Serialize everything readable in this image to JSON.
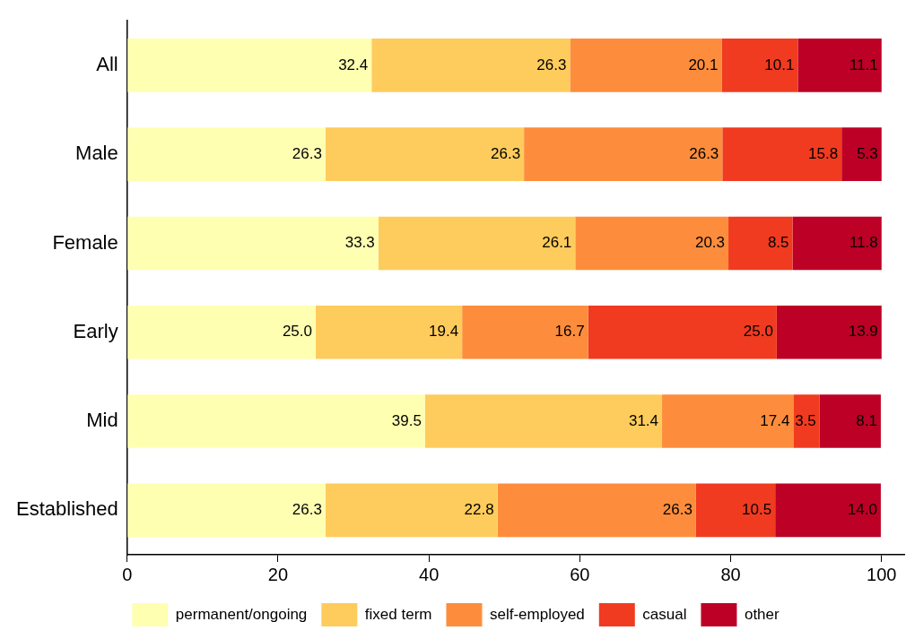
{
  "chart_data": {
    "type": "bar",
    "orientation": "horizontal",
    "stacked": true,
    "categories": [
      "All",
      "Male",
      "Female",
      "Early",
      "Mid",
      "Established"
    ],
    "series": [
      {
        "name": "permanent/ongoing",
        "color": "#ffffb2",
        "values": [
          32.4,
          26.3,
          33.3,
          25.0,
          39.5,
          26.3
        ],
        "value_labels": [
          "32.4",
          "26.3",
          "33.3",
          "25.0",
          "39.5",
          "26.3"
        ]
      },
      {
        "name": "fixed term",
        "color": "#fecc5c",
        "values": [
          26.3,
          26.3,
          26.1,
          19.4,
          31.4,
          22.8
        ],
        "value_labels": [
          "26.3",
          "26.3",
          "26.1",
          "19.4",
          "31.4",
          "22.8"
        ]
      },
      {
        "name": "self-employed",
        "color": "#fd8d3c",
        "values": [
          20.1,
          26.3,
          20.3,
          16.7,
          17.4,
          26.3
        ],
        "value_labels": [
          "20.1",
          "26.3",
          "20.3",
          "16.7",
          "17.4",
          "26.3"
        ]
      },
      {
        "name": "casual",
        "color": "#f03b20",
        "values": [
          10.1,
          15.8,
          8.5,
          25.0,
          3.5,
          10.5
        ],
        "value_labels": [
          "10.1",
          "15.8",
          "8.5",
          "25.0",
          "3.5",
          "10.5"
        ]
      },
      {
        "name": "other",
        "color": "#bd0026",
        "values": [
          11.1,
          5.3,
          11.8,
          13.9,
          8.1,
          14.0
        ],
        "value_labels": [
          "11.1",
          "5.3",
          "11.8",
          "13.9",
          "8.1",
          "14.0"
        ]
      }
    ],
    "xlim": [
      0,
      103
    ],
    "xticks": [
      0,
      20,
      40,
      60,
      80,
      100
    ],
    "grid": false,
    "legend": "bottom"
  }
}
